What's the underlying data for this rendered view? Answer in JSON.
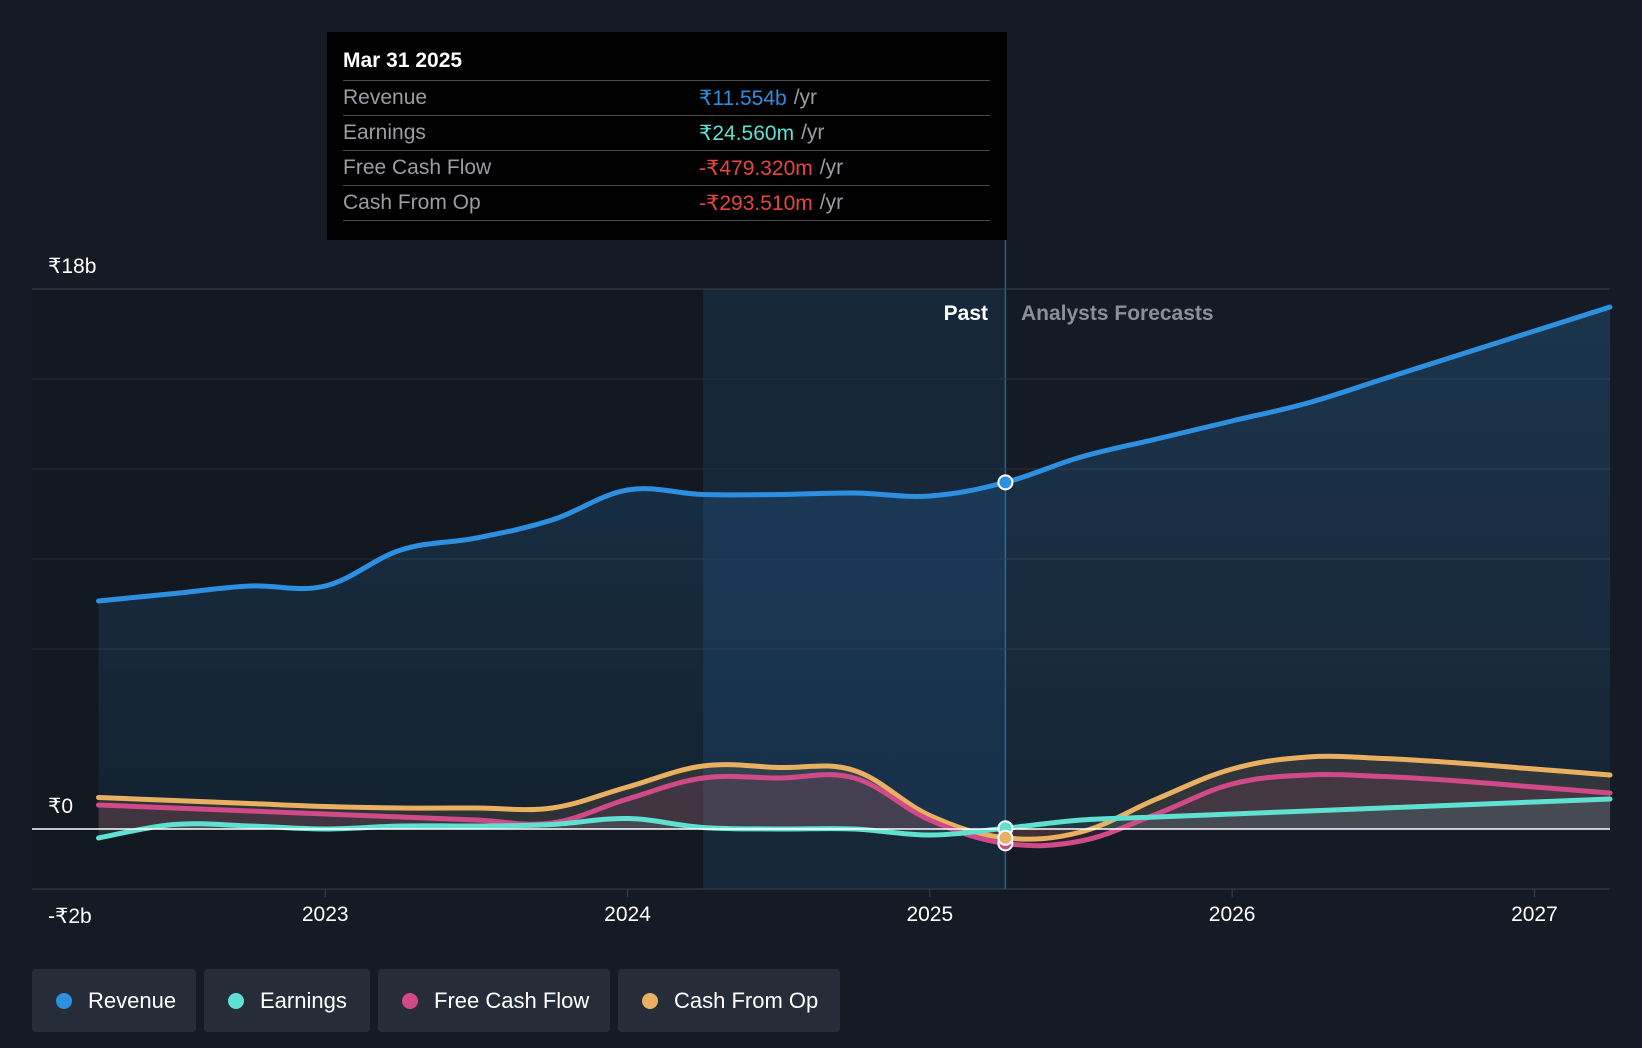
{
  "tooltip": {
    "date": "Mar 31 2025",
    "rows": [
      {
        "label": "Revenue",
        "value": "₹11.554b",
        "unit": "/yr",
        "color": "#2d8fe0"
      },
      {
        "label": "Earnings",
        "value": "₹24.560m",
        "unit": "/yr",
        "color": "#5fe0d0"
      },
      {
        "label": "Free Cash Flow",
        "value": "-₹479.320m",
        "unit": "/yr",
        "color": "#e8463f"
      },
      {
        "label": "Cash From Op",
        "value": "-₹293.510m",
        "unit": "/yr",
        "color": "#e8463f"
      }
    ]
  },
  "labels": {
    "past": "Past",
    "forecast": "Analysts Forecasts"
  },
  "legend": [
    {
      "label": "Revenue",
      "color": "#2d8fe0"
    },
    {
      "label": "Earnings",
      "color": "#5fe0d0"
    },
    {
      "label": "Free Cash Flow",
      "color": "#d04a87"
    },
    {
      "label": "Cash From Op",
      "color": "#e8b060"
    }
  ],
  "chart_data": {
    "type": "line",
    "title": "",
    "xlabel": "",
    "ylabel": "",
    "y_ticks": [
      {
        "value": 18,
        "label": "₹18b"
      },
      {
        "value": 0,
        "label": "₹0"
      },
      {
        "value": -2,
        "label": "-₹2b"
      }
    ],
    "ylim": [
      -2,
      18
    ],
    "x_ticks": [
      {
        "value": 2023,
        "label": "2023"
      },
      {
        "value": 2024,
        "label": "2024"
      },
      {
        "value": 2025,
        "label": "2025"
      },
      {
        "value": 2026,
        "label": "2026"
      },
      {
        "value": 2027,
        "label": "2027"
      }
    ],
    "xlim": [
      2022.03,
      2027.25
    ],
    "past_range": [
      2024.25,
      2025.25
    ],
    "highlight_x": 2025.25,
    "series": [
      {
        "name": "Revenue",
        "color": "#2d8fe0",
        "points": [
          [
            2022.25,
            7.6
          ],
          [
            2022.5,
            7.85
          ],
          [
            2022.75,
            8.1
          ],
          [
            2023.0,
            8.1
          ],
          [
            2023.25,
            9.3
          ],
          [
            2023.5,
            9.7
          ],
          [
            2023.75,
            10.3
          ],
          [
            2024.0,
            11.3
          ],
          [
            2024.25,
            11.15
          ],
          [
            2024.5,
            11.15
          ],
          [
            2024.75,
            11.2
          ],
          [
            2025.0,
            11.1
          ],
          [
            2025.25,
            11.554
          ],
          [
            2025.5,
            12.4
          ],
          [
            2025.75,
            13.0
          ],
          [
            2026.0,
            13.6
          ],
          [
            2026.25,
            14.2
          ],
          [
            2026.5,
            15.0
          ],
          [
            2026.75,
            15.8
          ],
          [
            2027.0,
            16.6
          ],
          [
            2027.25,
            17.4
          ]
        ]
      },
      {
        "name": "Earnings",
        "color": "#5fe0d0",
        "points": [
          [
            2022.25,
            -0.3
          ],
          [
            2022.5,
            0.15
          ],
          [
            2022.75,
            0.1
          ],
          [
            2023.0,
            0.0
          ],
          [
            2023.25,
            0.1
          ],
          [
            2023.5,
            0.1
          ],
          [
            2023.75,
            0.15
          ],
          [
            2024.0,
            0.35
          ],
          [
            2024.25,
            0.05
          ],
          [
            2024.5,
            0.0
          ],
          [
            2024.75,
            0.0
          ],
          [
            2025.0,
            -0.2
          ],
          [
            2025.25,
            0.02456
          ],
          [
            2025.5,
            0.3
          ],
          [
            2025.75,
            0.4
          ],
          [
            2026.0,
            0.5
          ],
          [
            2026.25,
            0.6
          ],
          [
            2026.5,
            0.7
          ],
          [
            2026.75,
            0.8
          ],
          [
            2027.0,
            0.9
          ],
          [
            2027.25,
            1.0
          ]
        ]
      },
      {
        "name": "Free Cash Flow",
        "color": "#d04a87",
        "points": [
          [
            2022.25,
            0.8
          ],
          [
            2022.5,
            0.7
          ],
          [
            2022.75,
            0.6
          ],
          [
            2023.0,
            0.5
          ],
          [
            2023.25,
            0.4
          ],
          [
            2023.5,
            0.3
          ],
          [
            2023.75,
            0.2
          ],
          [
            2024.0,
            1.0
          ],
          [
            2024.25,
            1.7
          ],
          [
            2024.5,
            1.7
          ],
          [
            2024.75,
            1.7
          ],
          [
            2025.0,
            0.3
          ],
          [
            2025.25,
            -0.47932
          ],
          [
            2025.5,
            -0.4
          ],
          [
            2025.75,
            0.5
          ],
          [
            2026.0,
            1.5
          ],
          [
            2026.25,
            1.8
          ],
          [
            2026.5,
            1.75
          ],
          [
            2026.75,
            1.6
          ],
          [
            2027.0,
            1.4
          ],
          [
            2027.25,
            1.2
          ]
        ]
      },
      {
        "name": "Cash From Op",
        "color": "#e8b060",
        "points": [
          [
            2022.25,
            1.05
          ],
          [
            2022.5,
            0.95
          ],
          [
            2022.75,
            0.85
          ],
          [
            2023.0,
            0.75
          ],
          [
            2023.25,
            0.7
          ],
          [
            2023.5,
            0.7
          ],
          [
            2023.75,
            0.7
          ],
          [
            2024.0,
            1.4
          ],
          [
            2024.25,
            2.1
          ],
          [
            2024.5,
            2.05
          ],
          [
            2024.75,
            1.95
          ],
          [
            2025.0,
            0.45
          ],
          [
            2025.25,
            -0.29351
          ],
          [
            2025.5,
            -0.1
          ],
          [
            2025.75,
            1.0
          ],
          [
            2026.0,
            2.0
          ],
          [
            2026.25,
            2.4
          ],
          [
            2026.5,
            2.35
          ],
          [
            2026.75,
            2.2
          ],
          [
            2027.0,
            2.0
          ],
          [
            2027.25,
            1.8
          ]
        ]
      }
    ]
  }
}
